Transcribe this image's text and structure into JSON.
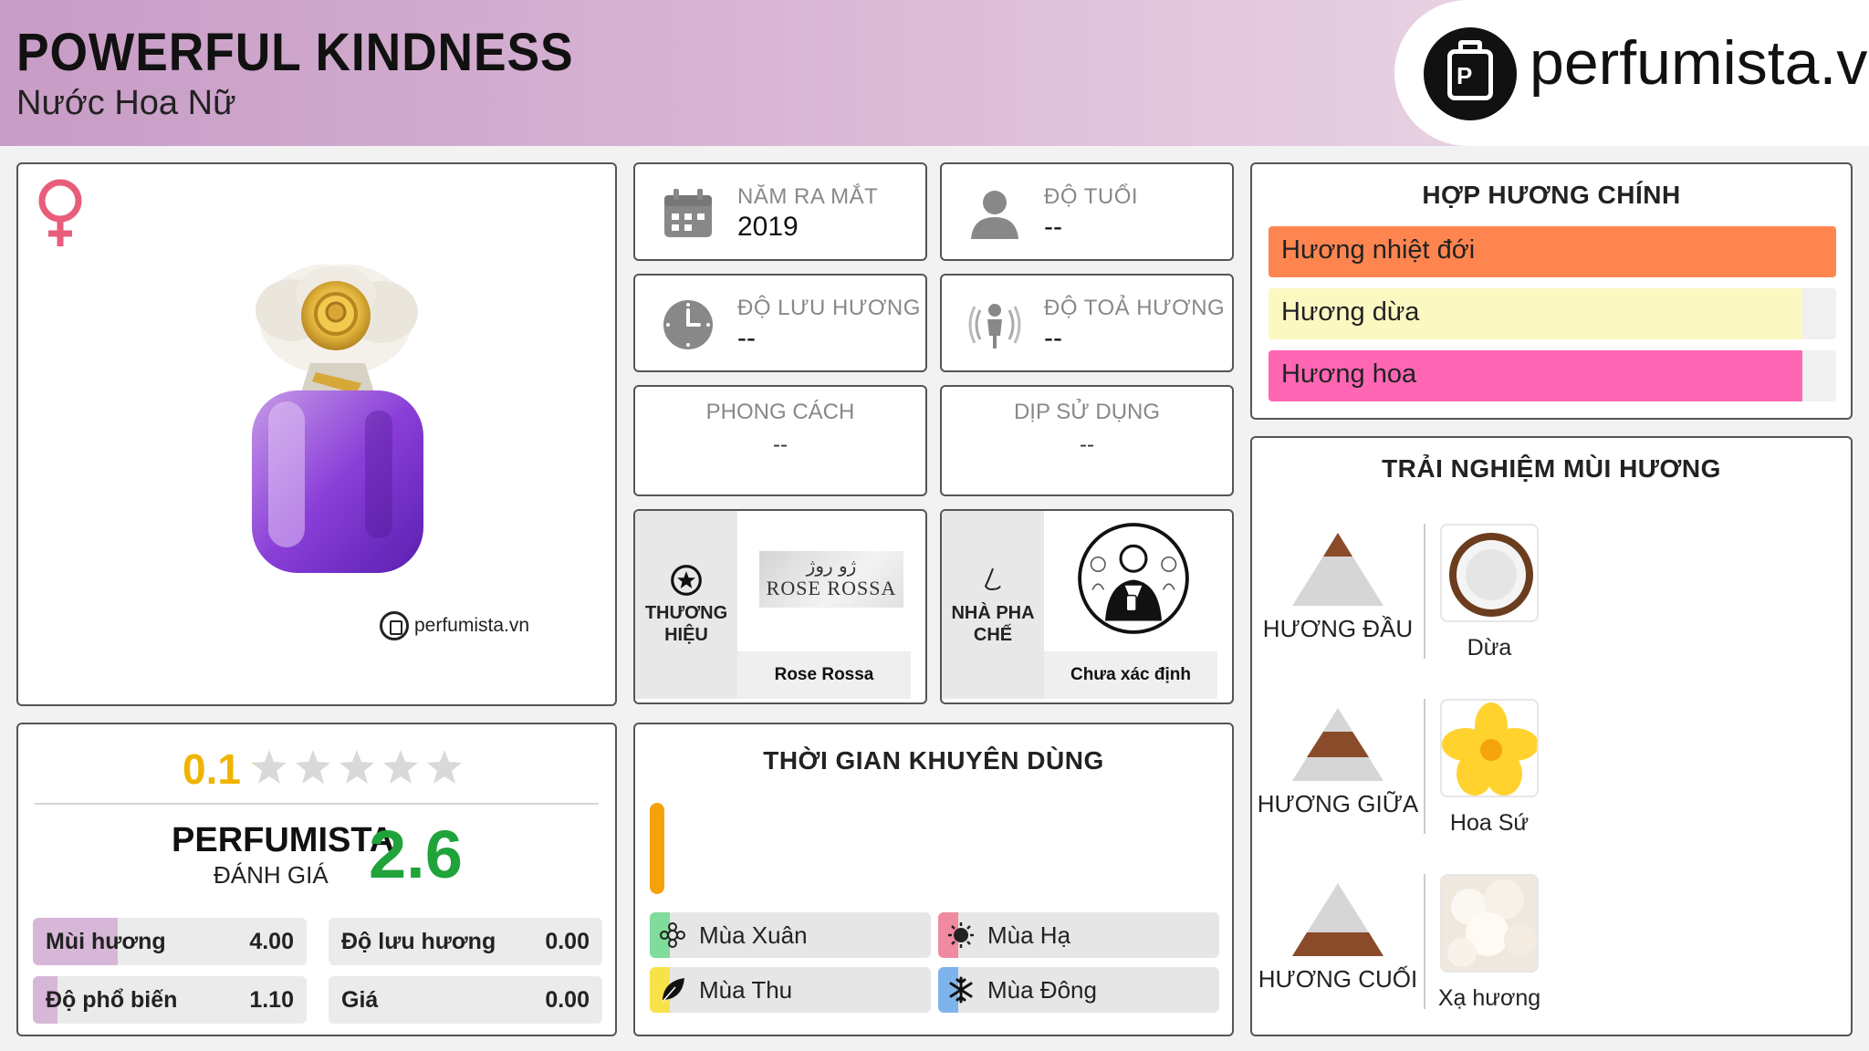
{
  "header": {
    "title": "POWERFUL KINDNESS",
    "subtitle": "Nước Hoa Nữ",
    "logo_text": "perfumista.vn"
  },
  "product": {
    "gender_icon": "female-icon",
    "watermark": "perfumista.vn"
  },
  "info": {
    "launch_year": {
      "label": "NĂM RA MẮT",
      "value": "2019",
      "icon": "calendar-icon"
    },
    "age": {
      "label": "ĐỘ TUỔI",
      "value": "--",
      "icon": "person-icon"
    },
    "longevity": {
      "label": "ĐỘ LƯU HƯƠNG",
      "value": "--",
      "icon": "clock-icon"
    },
    "sillage": {
      "label": "ĐỘ TOẢ HƯƠNG",
      "value": "--",
      "icon": "sillage-icon"
    },
    "style": {
      "label": "PHONG CÁCH",
      "value": "--"
    },
    "occasion": {
      "label": "DỊP SỬ DỤNG",
      "value": "--"
    }
  },
  "brand": {
    "label_line1": "THƯƠNG",
    "label_line2": "HIỆU",
    "name": "Rose Rossa",
    "logo_arabic": "ژو روژ",
    "logo_text": "ROSE ROSSA"
  },
  "perfumer": {
    "label_line1": "NHÀ PHA",
    "label_line2": "CHẾ",
    "name": "Chưa xác định"
  },
  "main_accords": {
    "title": "HỢP HƯƠNG CHÍNH",
    "items": [
      {
        "label": "Hương nhiệt đới",
        "fill": 100,
        "color": "#ff8550"
      },
      {
        "label": "Hương dừa",
        "fill": 94,
        "color": "#fbf8c2"
      },
      {
        "label": "Hương hoa",
        "fill": 94,
        "color": "#ff66b4"
      }
    ]
  },
  "notes": {
    "title": "TRẢI NGHIỆM MÙI HƯƠNG",
    "rows": [
      {
        "tier": "HƯƠNG ĐẦU",
        "note": "Dừa"
      },
      {
        "tier": "HƯƠNG GIỮA",
        "note": "Hoa Sứ"
      },
      {
        "tier": "HƯƠNG CUỐI",
        "note": "Xạ hương"
      }
    ]
  },
  "ratings": {
    "user_score": "0.1",
    "user_stars": 0.1,
    "perfumista_label": "PERFUMISTA",
    "perfumista_sub": "ĐÁNH GIÁ",
    "perfumista_score": "2.6",
    "metrics": [
      {
        "label": "Mùi hương",
        "value": "4.00",
        "fill": 0.31
      },
      {
        "label": "Độ lưu hương",
        "value": "0.00",
        "fill": 0
      },
      {
        "label": "Độ phổ biến",
        "value": "1.10",
        "fill": 0.09
      },
      {
        "label": "Giá",
        "value": "0.00",
        "fill": 0
      }
    ]
  },
  "time": {
    "title": "THỜI GIAN KHUYÊN DÙNG",
    "seasons": [
      {
        "label": "Mùa Xuân",
        "color": "#7fdc9a",
        "icon": "spring-icon"
      },
      {
        "label": "Mùa Hạ",
        "color": "#f08aa0",
        "icon": "summer-icon"
      },
      {
        "label": "Mùa Thu",
        "color": "#f7e24a",
        "icon": "autumn-icon"
      },
      {
        "label": "Mùa Đông",
        "color": "#7fb3ec",
        "icon": "winter-icon"
      }
    ]
  }
}
